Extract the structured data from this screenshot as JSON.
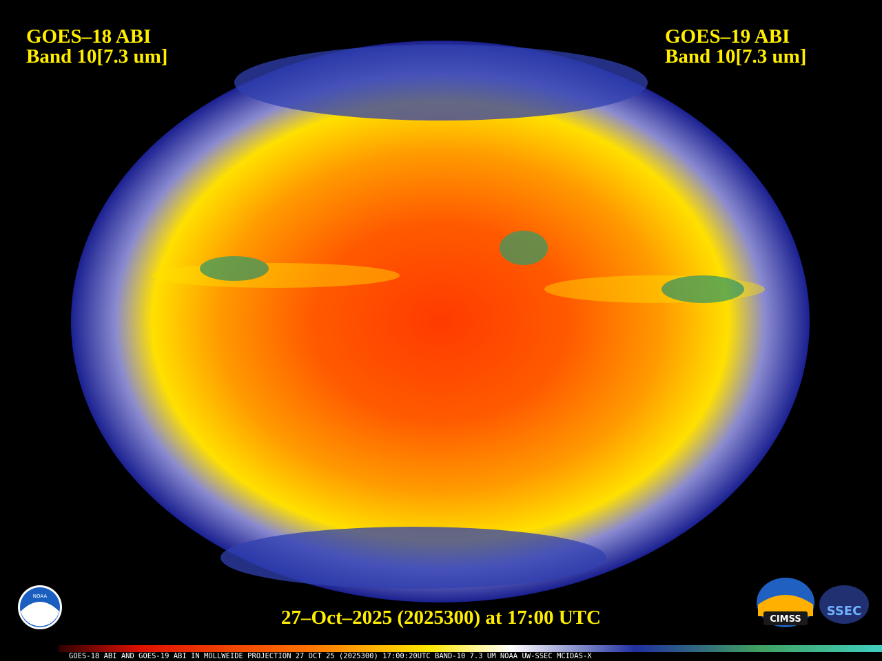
{
  "header": {
    "left": {
      "line1": "GOES–18 ABI",
      "line2": "Band 10[7.3 um]"
    },
    "right": {
      "line1": "GOES–19 ABI",
      "line2": "Band 10[7.3 um]"
    }
  },
  "timestamp": "27–Oct–2025 (2025300) at 17:00 UTC",
  "footer": "GOES-18 ABI AND GOES-19 ABI IN MOLLWEIDE PROJECTION 27 OCT 25 (2025300) 17:00:20UTC BAND-10 7.3 UM NOAA UW-SSEC MCIDAS-X",
  "logos": {
    "noaa": "NOAA",
    "cimss": "CIMSS",
    "ssec": "SSEC"
  }
}
